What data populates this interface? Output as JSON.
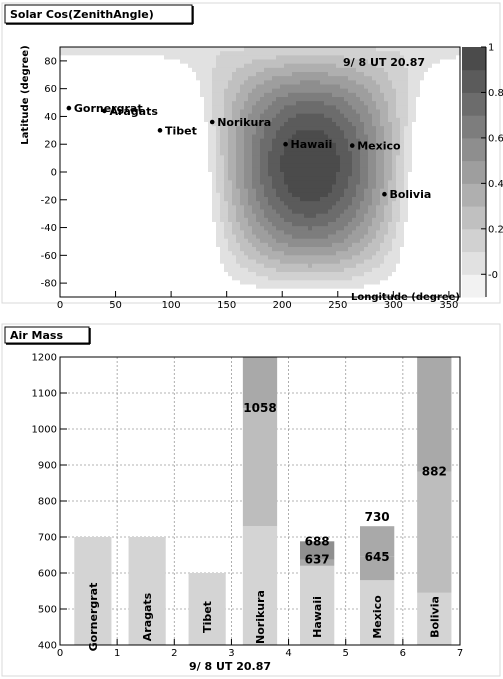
{
  "chart_data": [
    {
      "type": "heatmap",
      "title": "Solar Cos(ZenithAngle)",
      "annotation": "9/ 8  UT 20.87",
      "xlabel": "Longitude (degree)",
      "ylabel": "Latitude (degree)",
      "xlim": [
        0,
        360
      ],
      "ylim": [
        -90,
        90
      ],
      "xticks": [
        "0",
        "50",
        "100",
        "150",
        "200",
        "250",
        "300",
        "350"
      ],
      "yticks": [
        "-80",
        "-60",
        "-40",
        "-20",
        "0",
        "20",
        "40",
        "60",
        "80"
      ],
      "colorbar": {
        "range": [
          -0.1,
          1
        ],
        "ticks": [
          "-0",
          "0.2",
          "0.4",
          "0.6",
          "0.8",
          "1"
        ],
        "levels": 11,
        "low_color": "#f2f2f2",
        "high_color": "#3a3a3a"
      },
      "subsolar_point": {
        "longitude": 225,
        "latitude": 5
      },
      "sites": [
        {
          "name": "Gornergrat",
          "longitude": 8,
          "latitude": 46
        },
        {
          "name": "Aragats",
          "longitude": 40,
          "latitude": 44
        },
        {
          "name": "Tibet",
          "longitude": 90,
          "latitude": 30
        },
        {
          "name": "Norikura",
          "longitude": 137,
          "latitude": 36
        },
        {
          "name": "Hawaii",
          "longitude": 203,
          "latitude": 20
        },
        {
          "name": "Mexico",
          "longitude": 263,
          "latitude": 19
        },
        {
          "name": "Bolivia",
          "longitude": 292,
          "latitude": -16
        }
      ]
    },
    {
      "type": "bar",
      "title": "Air Mass",
      "xlabel": "9/ 8  UT 20.87",
      "xlim": [
        0,
        7
      ],
      "ylim": [
        400,
        1200
      ],
      "xticks": [
        "0",
        "1",
        "2",
        "3",
        "4",
        "5",
        "6",
        "7"
      ],
      "yticks": [
        "400",
        "500",
        "600",
        "700",
        "800",
        "900",
        "1000",
        "1100",
        "1200"
      ],
      "colors": {
        "base": "#d4d4d4",
        "mid": "#bdbdbd",
        "upper": "#a9a9a9",
        "dark": "#8f8f8f"
      },
      "bars": [
        {
          "name": "Gornergrat",
          "x0": 0.25,
          "x1": 0.9,
          "segments": [
            700
          ]
        },
        {
          "name": "Aragats",
          "x0": 1.2,
          "x1": 1.85,
          "segments": [
            700
          ]
        },
        {
          "name": "Tibet",
          "x0": 2.25,
          "x1": 2.9,
          "segments": [
            600
          ]
        },
        {
          "name": "Norikura",
          "x0": 3.2,
          "x1": 3.8,
          "segments": [
            730,
            1058,
            1200
          ],
          "labels": [
            "1058"
          ]
        },
        {
          "name": "Hawaii",
          "x0": 4.2,
          "x1": 4.8,
          "segments": [
            620,
            637,
            688
          ],
          "labels": [
            "688",
            "637"
          ]
        },
        {
          "name": "Mexico",
          "x0": 5.25,
          "x1": 5.85,
          "segments": [
            580,
            645,
            730
          ],
          "labels": [
            "730",
            "645"
          ]
        },
        {
          "name": "Bolivia",
          "x0": 6.25,
          "x1": 6.85,
          "segments": [
            545,
            882,
            1200
          ],
          "labels": [
            "882"
          ]
        }
      ]
    }
  ]
}
